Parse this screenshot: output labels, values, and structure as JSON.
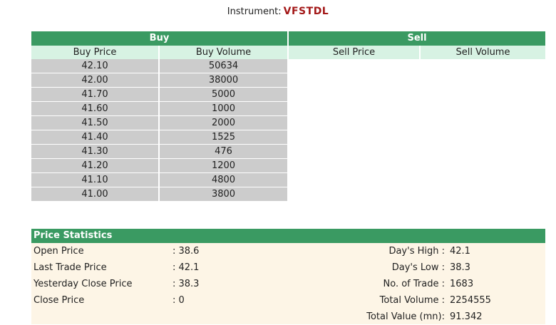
{
  "instrument": {
    "label": "Instrument:",
    "code": "VFSTDL"
  },
  "depth": {
    "buy_header": "Buy",
    "sell_header": "Sell",
    "columns": [
      "Buy Price",
      "Buy Volume",
      "Sell Price",
      "Sell Volume"
    ],
    "buy_rows": [
      {
        "price": "42.10",
        "volume": "50634"
      },
      {
        "price": "42.00",
        "volume": "38000"
      },
      {
        "price": "41.70",
        "volume": "5000"
      },
      {
        "price": "41.60",
        "volume": "1000"
      },
      {
        "price": "41.50",
        "volume": "2000"
      },
      {
        "price": "41.40",
        "volume": "1525"
      },
      {
        "price": "41.30",
        "volume": "476"
      },
      {
        "price": "41.20",
        "volume": "1200"
      },
      {
        "price": "41.10",
        "volume": "4800"
      },
      {
        "price": "41.00",
        "volume": "3800"
      }
    ]
  },
  "stats": {
    "header": "Price Statistics",
    "left": [
      {
        "label": "Open Price",
        "value": ": 38.6"
      },
      {
        "label": "Last Trade Price",
        "value": ": 42.1"
      },
      {
        "label": "Yesterday Close Price",
        "value": ": 38.3"
      },
      {
        "label": "Close Price",
        "value": ": 0"
      }
    ],
    "right": [
      {
        "label": "Day's High :",
        "value": "42.1"
      },
      {
        "label": "Day's Low :",
        "value": "38.3"
      },
      {
        "label": "No. of Trade :",
        "value": "1683"
      },
      {
        "label": "Total Volume :",
        "value": "2254555"
      },
      {
        "label": "Total Value (mn):",
        "value": "91.342"
      }
    ]
  }
}
